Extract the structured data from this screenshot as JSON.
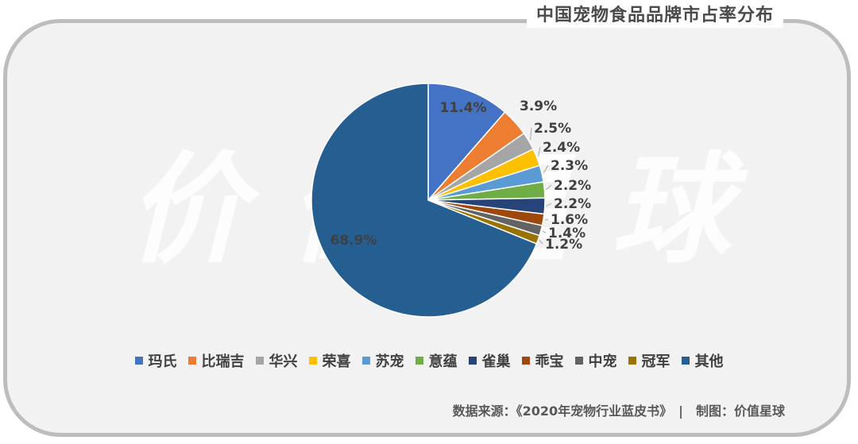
{
  "title": "中国宠物食品品牌市占率分布",
  "watermark": "价值星球",
  "source": "数据来源：《2020年宠物行业蓝皮书》　|　制图：价值星球",
  "chart_data": {
    "type": "pie",
    "title": "中国宠物食品品牌市占率分布",
    "unit": "%",
    "start_angle_deg": 90,
    "direction": "clockwise",
    "legend_position": "bottom",
    "categories": [
      "玛氏",
      "比瑞吉",
      "华兴",
      "荣喜",
      "苏宠",
      "意蕴",
      "雀巢",
      "乖宝",
      "中宠",
      "冠军",
      "其他"
    ],
    "values": [
      11.4,
      3.9,
      2.5,
      2.4,
      2.3,
      2.2,
      2.2,
      1.6,
      1.4,
      1.2,
      68.9
    ],
    "labels": [
      "11.4%",
      "3.9%",
      "2.5%",
      "2.4%",
      "2.3%",
      "2.2%",
      "2.2%",
      "1.6%",
      "1.4%",
      "1.2%",
      "68.9%"
    ],
    "colors": [
      "#4472C4",
      "#ED7D31",
      "#A5A5A5",
      "#FFC000",
      "#5B9BD5",
      "#70AD47",
      "#264478",
      "#9E480E",
      "#636363",
      "#997300",
      "#255E91"
    ]
  }
}
